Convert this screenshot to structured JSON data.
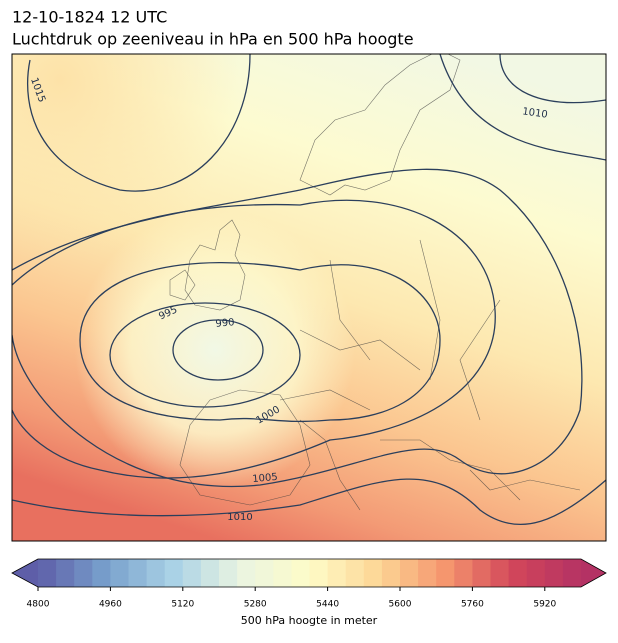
{
  "title": "12-10-1824 12 UTC",
  "subtitle": "Luchtdruk op zeeniveau in hPa en 500 hPa hoogte",
  "contour_labels": [
    1015,
    1010,
    995,
    990,
    1000,
    1005,
    1010
  ],
  "colorbar": {
    "label": "500 hPa hoogte in meter",
    "lim": [
      4800,
      6000
    ],
    "step": 40,
    "ticks": [
      4800,
      4960,
      5120,
      5280,
      5440,
      5600,
      5760,
      5920
    ]
  }
}
